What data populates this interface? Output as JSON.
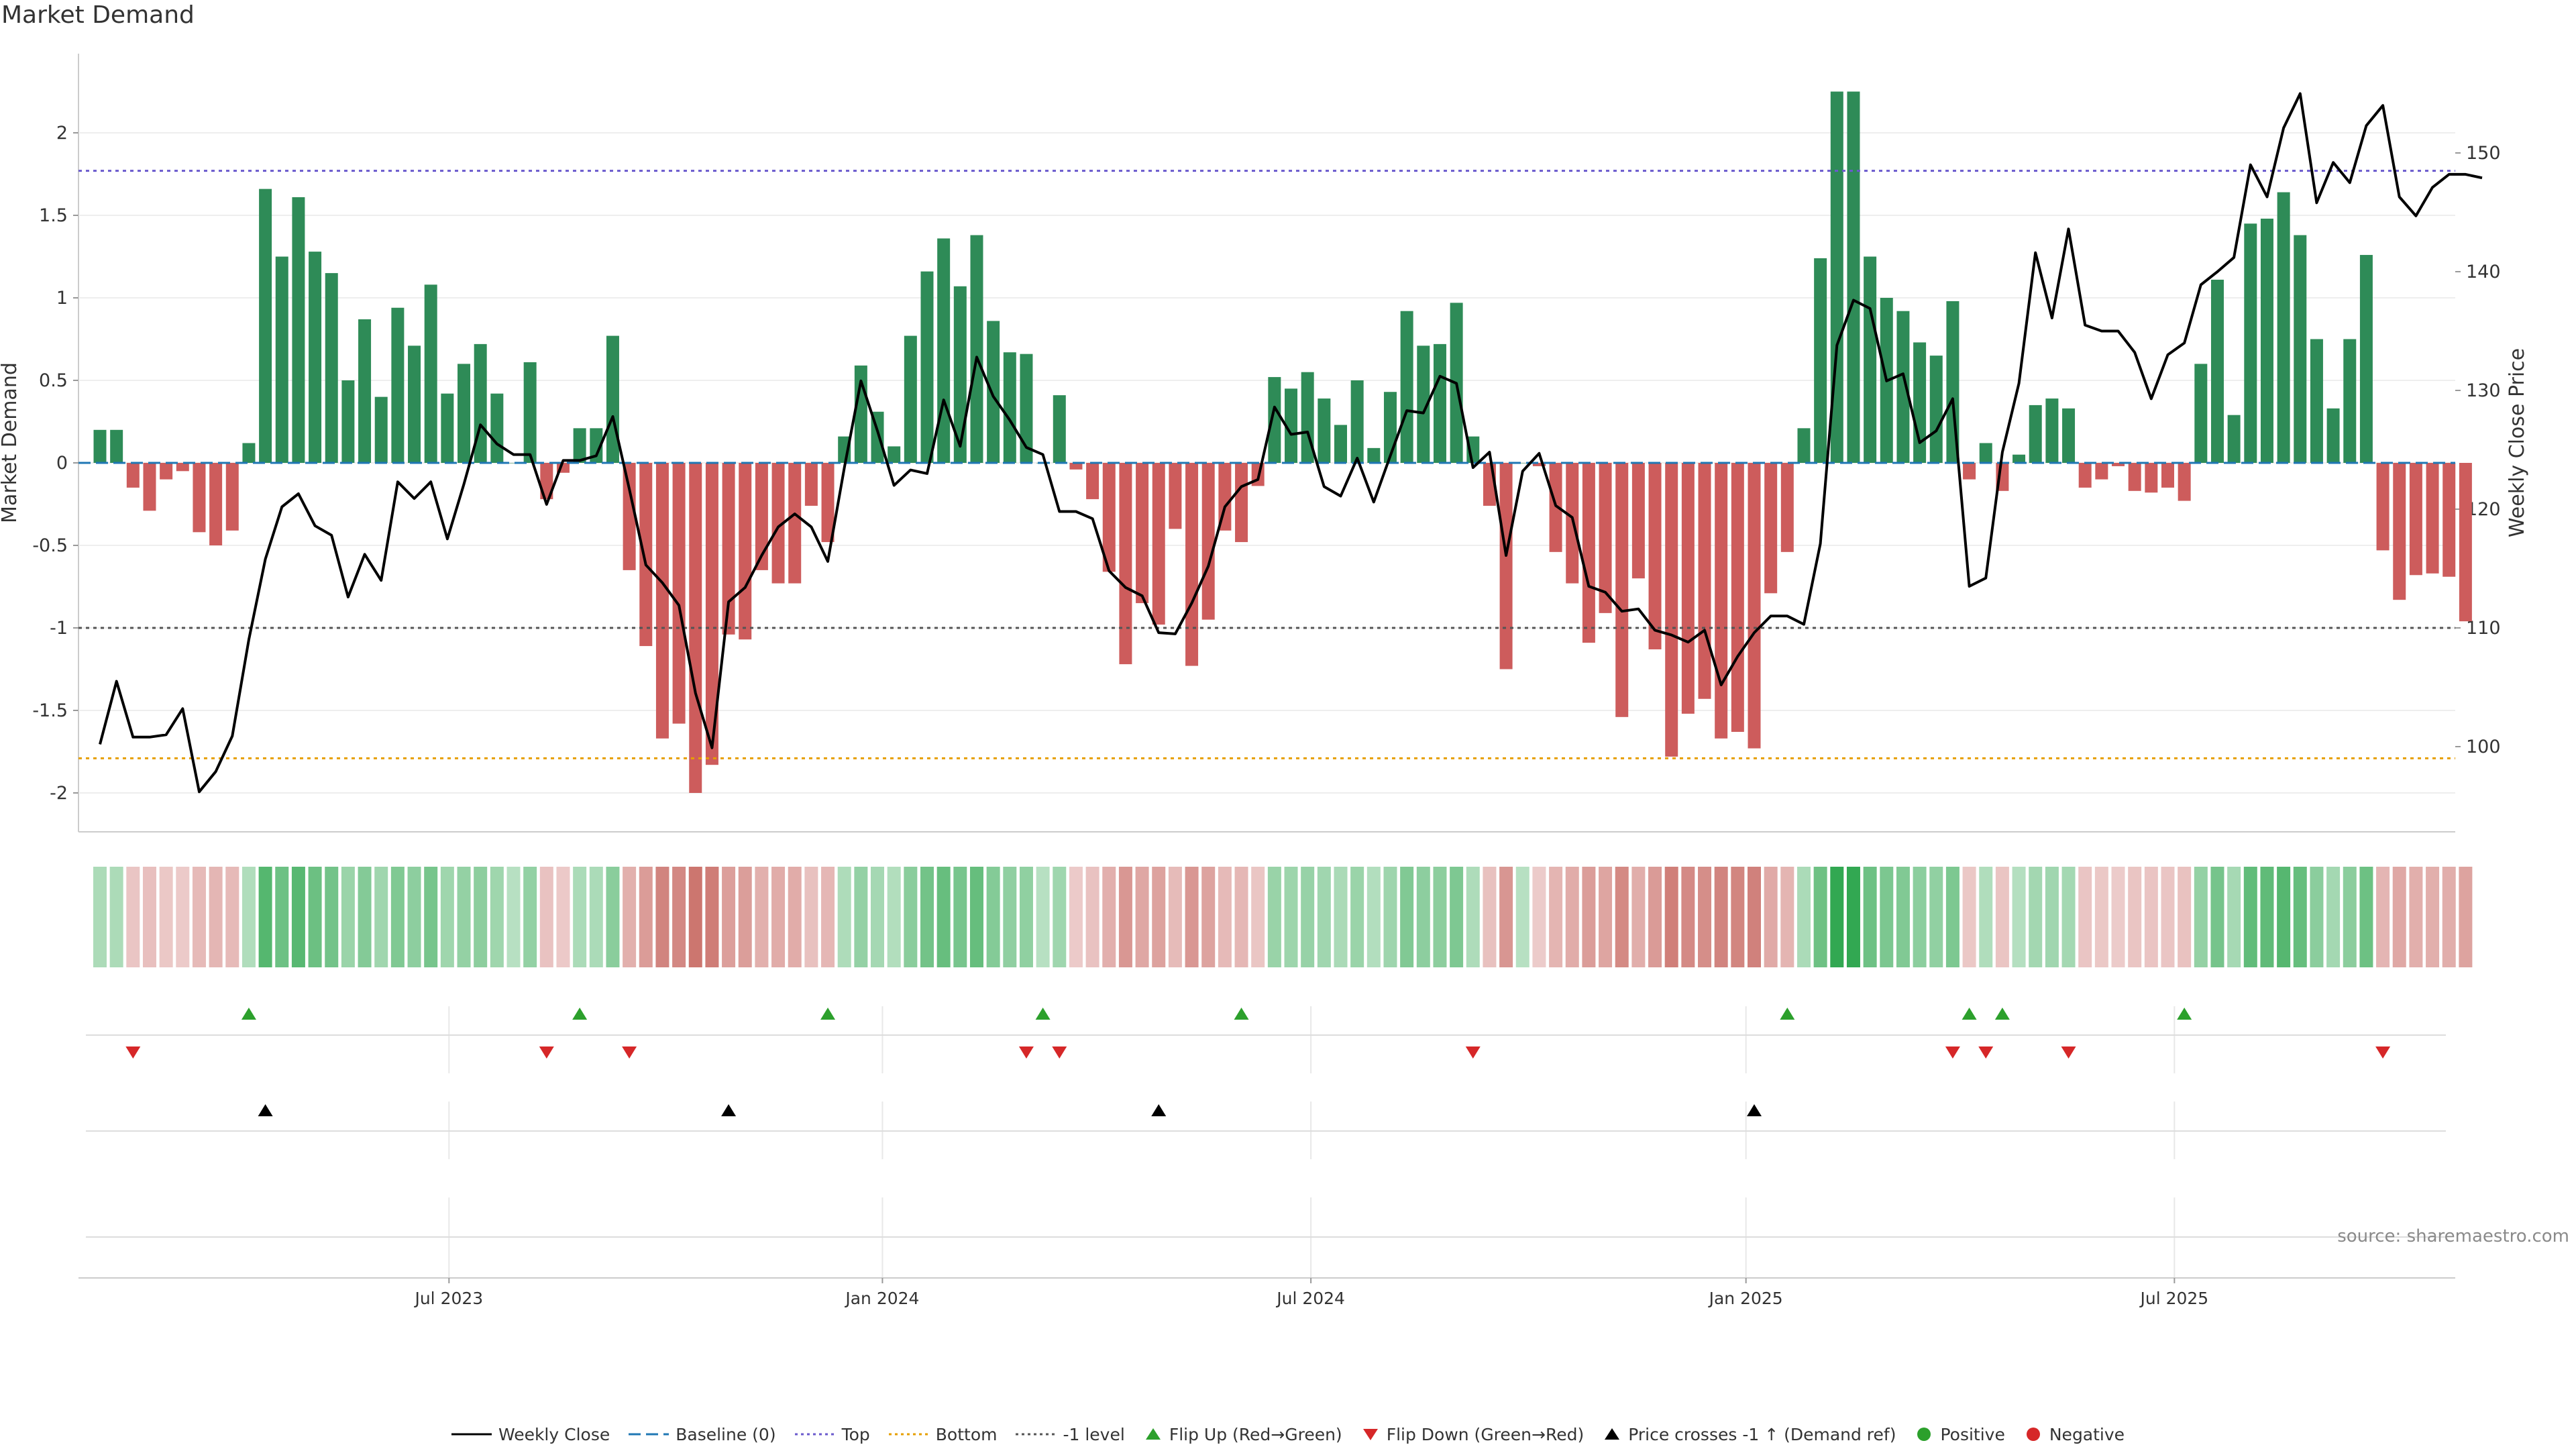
{
  "title": "Market Demand",
  "source": "source: sharemaestro.com",
  "colors": {
    "pos": "#2e8b57",
    "neg": "#cd5c5c",
    "price": "#000000",
    "baseline": "#1f77b4",
    "top": "#6a5acd",
    "bottom": "#e69f00",
    "minus1": "#555555",
    "flipUp": "#2ca02c",
    "flipDown": "#d62728",
    "cross": "#000000",
    "positive": "#2ca02c",
    "negative": "#d62728"
  },
  "legend": [
    {
      "id": "weekly-close",
      "label": "Weekly Close",
      "kind": "line",
      "color": "#000000",
      "dash": ""
    },
    {
      "id": "baseline",
      "label": "Baseline (0)",
      "kind": "line",
      "color": "#1f77b4",
      "dash": "18,8"
    },
    {
      "id": "top",
      "label": "Top",
      "kind": "line",
      "color": "#6a5acd",
      "dash": "4,5"
    },
    {
      "id": "bottom",
      "label": "Bottom",
      "kind": "line",
      "color": "#e69f00",
      "dash": "4,5"
    },
    {
      "id": "minus1",
      "label": "-1 level",
      "kind": "line",
      "color": "#555555",
      "dash": "4,5"
    },
    {
      "id": "flip-up",
      "label": "Flip Up (Red→Green)",
      "kind": "tri-up",
      "color": "#2ca02c"
    },
    {
      "id": "flip-down",
      "label": "Flip Down (Green→Red)",
      "kind": "tri-down",
      "color": "#d62728"
    },
    {
      "id": "price-cross",
      "label": "Price crosses -1 ↑ (Demand ref)",
      "kind": "tri-up",
      "color": "#000000"
    },
    {
      "id": "positive",
      "label": "Positive",
      "kind": "dot",
      "color": "#2ca02c"
    },
    {
      "id": "negative",
      "label": "Negative",
      "kind": "dot",
      "color": "#d62728"
    }
  ],
  "chart_data": {
    "type": "bar",
    "title": "Market Demand",
    "ylabel": "Market Demand",
    "y2label": "Weekly Close Price",
    "ylim": [
      -2.25,
      2.5
    ],
    "y2lim": [
      92,
      157
    ],
    "yticks": [
      -2,
      -1.5,
      -1,
      -0.5,
      0,
      0.5,
      1,
      1.5,
      2
    ],
    "y2ticks": [
      100,
      110,
      120,
      130,
      140,
      150
    ],
    "x_range": [
      0,
      144
    ],
    "xticks": [
      {
        "label": "Jul 2023",
        "x": 21.1
      },
      {
        "label": "Jan 2024",
        "x": 47.3
      },
      {
        "label": "Jul 2024",
        "x": 73.2
      },
      {
        "label": "Jan 2025",
        "x": 99.5
      },
      {
        "label": "Jul 2025",
        "x": 125.4
      }
    ],
    "reference_lines": {
      "baseline": 0,
      "top": 1.77,
      "bottom": -1.79,
      "minus1": -1.0
    },
    "demand": [
      0.2,
      0.2,
      -0.15,
      -0.29,
      -0.1,
      -0.05,
      -0.42,
      -0.5,
      -0.41,
      0.12,
      1.66,
      1.25,
      1.61,
      1.28,
      1.15,
      0.5,
      0.87,
      0.4,
      0.94,
      0.71,
      1.08,
      0.42,
      0.6,
      0.72,
      0.42,
      0.0,
      0.61,
      -0.22,
      -0.06,
      0.21,
      0.21,
      0.77,
      -0.65,
      -1.11,
      -1.67,
      -1.58,
      -2.0,
      -1.83,
      -1.04,
      -1.07,
      -0.65,
      -0.73,
      -0.73,
      -0.26,
      -0.48,
      0.16,
      0.59,
      0.31,
      0.1,
      0.77,
      1.16,
      1.36,
      1.07,
      1.38,
      0.86,
      0.67,
      0.66,
      0.0,
      0.41,
      -0.04,
      -0.22,
      -0.66,
      -1.22,
      -0.85,
      -0.98,
      -0.4,
      -1.23,
      -0.95,
      -0.41,
      -0.48,
      -0.14,
      0.52,
      0.45,
      0.55,
      0.39,
      0.23,
      0.5,
      0.09,
      0.43,
      0.92,
      0.71,
      0.72,
      0.97,
      0.16,
      -0.26,
      -1.25,
      0.0,
      -0.02,
      -0.54,
      -0.73,
      -1.09,
      -0.91,
      -1.54,
      -0.7,
      -1.13,
      -1.78,
      -1.52,
      -1.43,
      -1.67,
      -1.63,
      -1.73,
      -0.79,
      -0.54,
      0.21,
      1.24,
      2.25,
      2.25,
      1.25,
      1.0,
      0.92,
      0.73,
      0.65,
      0.98,
      -0.1,
      0.12,
      -0.17,
      0.05,
      0.35,
      0.39,
      0.33,
      -0.15,
      -0.1,
      -0.02,
      -0.17,
      -0.18,
      -0.15,
      -0.23,
      0.6,
      1.11,
      0.29,
      1.45,
      1.48,
      1.64,
      1.38,
      0.75,
      0.33,
      0.75,
      1.26,
      -0.53,
      -0.83,
      -0.68,
      -0.67,
      -0.69,
      -0.96
    ],
    "weekly_close": [
      100.2,
      105.5,
      100.8,
      100.8,
      101.0,
      103.2,
      96.2,
      97.9,
      100.9,
      109.0,
      115.8,
      120.2,
      121.3,
      118.6,
      117.8,
      112.6,
      116.2,
      114.0,
      122.3,
      120.9,
      122.3,
      117.5,
      122.1,
      127.1,
      125.5,
      124.6,
      124.6,
      120.4,
      124.1,
      124.1,
      124.5,
      127.8,
      121.7,
      115.3,
      113.8,
      111.9,
      104.5,
      99.9,
      112.2,
      113.4,
      116.1,
      118.5,
      119.6,
      118.5,
      115.6,
      123.5,
      130.8,
      126.6,
      122.0,
      123.3,
      123.0,
      129.2,
      125.3,
      132.8,
      129.5,
      127.5,
      125.2,
      124.6,
      119.8,
      119.8,
      119.2,
      114.8,
      113.4,
      112.7,
      109.6,
      109.5,
      112.1,
      115.2,
      120.2,
      121.9,
      122.5,
      128.6,
      126.3,
      126.5,
      121.9,
      121.1,
      124.3,
      120.6,
      124.5,
      128.3,
      128.1,
      131.2,
      130.6,
      123.5,
      124.8,
      116.1,
      123.2,
      124.7,
      120.3,
      119.3,
      113.5,
      113.0,
      111.4,
      111.6,
      109.8,
      109.4,
      108.8,
      109.8,
      105.2,
      107.6,
      109.6,
      111.0,
      111.0,
      110.3,
      117.1,
      133.8,
      137.6,
      136.9,
      130.8,
      131.4,
      125.6,
      126.6,
      129.3,
      113.5,
      114.2,
      124.8,
      130.6,
      141.6,
      136.1,
      143.6,
      135.5,
      135.0,
      135.0,
      133.2,
      129.3,
      133.0,
      134.0,
      138.9,
      140.0,
      141.2,
      149.0,
      146.3,
      152.1,
      155.0,
      145.8,
      149.2,
      147.5,
      152.3,
      154.0,
      146.3,
      144.7,
      147.1,
      148.2,
      148.2,
      147.9
    ],
    "flip_up_weeks": [
      9,
      29,
      44,
      57,
      69,
      102,
      113,
      115,
      126
    ],
    "flip_down_weeks": [
      2,
      27,
      32,
      56,
      58,
      83,
      112,
      114,
      119,
      138
    ],
    "price_cross_weeks": [
      10,
      38,
      64,
      100
    ]
  }
}
